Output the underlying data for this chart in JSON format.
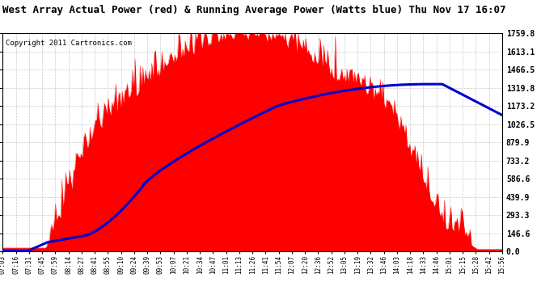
{
  "title": "West Array Actual Power (red) & Running Average Power (Watts blue) Thu Nov 17 16:07",
  "copyright": "Copyright 2011 Cartronics.com",
  "yticks": [
    0.0,
    146.6,
    293.3,
    439.9,
    586.6,
    733.2,
    879.9,
    1026.5,
    1173.2,
    1319.8,
    1466.5,
    1613.1,
    1759.8
  ],
  "ymax": 1759.8,
  "background_color": "#ffffff",
  "grid_color": "#bbbbbb",
  "actual_color": "#ff0000",
  "avg_color": "#0000cc",
  "x_labels": [
    "07:03",
    "07:16",
    "07:31",
    "07:45",
    "07:59",
    "08:14",
    "08:27",
    "08:41",
    "08:55",
    "09:10",
    "09:24",
    "09:39",
    "09:53",
    "10:07",
    "10:21",
    "10:34",
    "10:47",
    "11:01",
    "11:13",
    "11:26",
    "11:41",
    "11:54",
    "12:07",
    "12:20",
    "12:36",
    "12:52",
    "13:05",
    "13:19",
    "13:32",
    "13:46",
    "14:03",
    "14:18",
    "14:33",
    "14:46",
    "15:01",
    "15:15",
    "15:28",
    "15:42",
    "15:56"
  ],
  "title_fontsize": 9,
  "copyright_fontsize": 6.5,
  "ytick_fontsize": 7,
  "xtick_fontsize": 5.5
}
